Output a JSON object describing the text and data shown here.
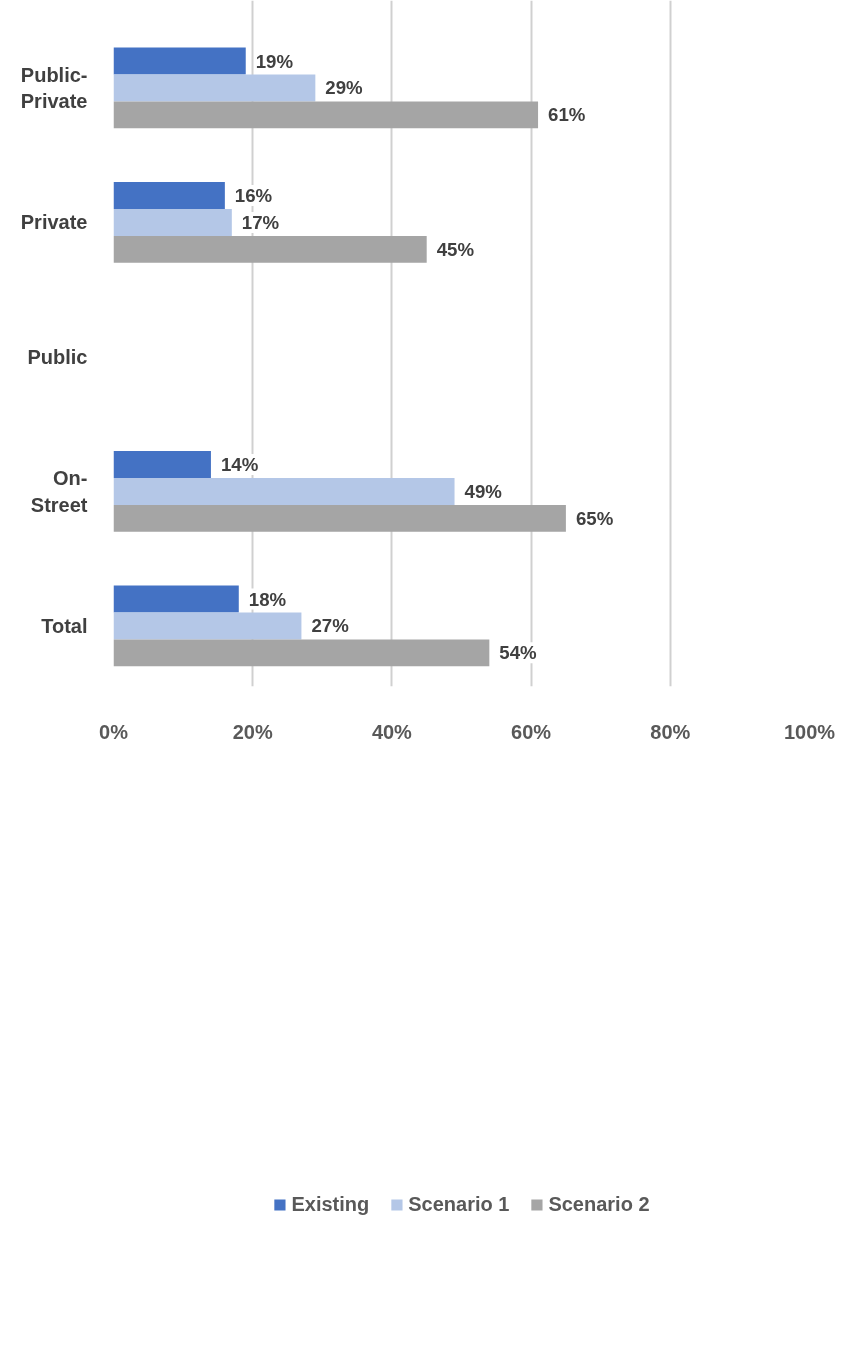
{
  "chart_data": {
    "type": "bar",
    "orientation": "horizontal",
    "categories": [
      "Public-Private",
      "Private",
      "Public",
      "On-Street",
      "Total"
    ],
    "series": [
      {
        "name": "Existing",
        "color": "#4472c4",
        "values": [
          19,
          16,
          null,
          14,
          18
        ],
        "value_labels": [
          "19%",
          "16%",
          null,
          "14%",
          "18%"
        ]
      },
      {
        "name": "Scenario 1",
        "color": "#b4c7e7",
        "values": [
          29,
          17,
          null,
          49,
          27
        ],
        "value_labels": [
          "29%",
          "17%",
          null,
          "49%",
          "27%"
        ]
      },
      {
        "name": "Scenario 2",
        "color": "#a5a5a5",
        "values": [
          61,
          45,
          null,
          65,
          54
        ],
        "value_labels": [
          "61%",
          "45%",
          null,
          "65%",
          "54%"
        ]
      }
    ],
    "xlim": [
      0,
      100
    ],
    "xticks": [
      {
        "value": 0,
        "label": "0%"
      },
      {
        "value": 20,
        "label": "20%"
      },
      {
        "value": 40,
        "label": "40%"
      },
      {
        "value": 60,
        "label": "60%"
      },
      {
        "value": 80,
        "label": "80%"
      },
      {
        "value": 100,
        "label": "100%"
      }
    ],
    "grid": "x",
    "legend": "bottom"
  }
}
